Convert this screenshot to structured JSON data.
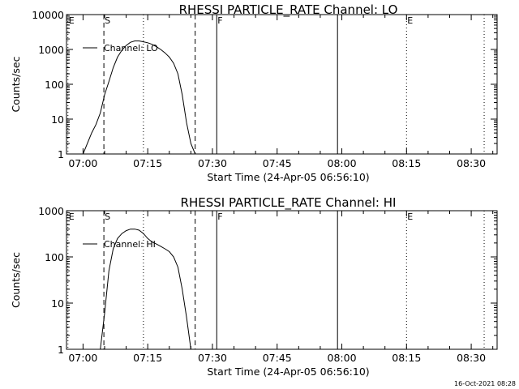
{
  "footer": {
    "timestamp": "16-Oct-2021 08:28"
  },
  "chart_data": [
    {
      "type": "line",
      "title": "RHESSI PARTICLE_RATE Channel: LO",
      "xlabel": "Start Time (24-Apr-05 06:56:10)",
      "ylabel": "Counts/sec",
      "yscale": "log",
      "xlim": [
        "06:56:10",
        "08:36:00"
      ],
      "ylim": [
        1,
        10000
      ],
      "xticks": [
        "07:00",
        "07:15",
        "07:30",
        "07:45",
        "08:00",
        "08:15",
        "08:30"
      ],
      "yticks": [
        "1",
        "10",
        "100",
        "1000",
        "10000"
      ],
      "legend": {
        "position": "top-left",
        "entries": [
          "Channel: LO"
        ]
      },
      "series": [
        {
          "name": "Channel: LO",
          "x": [
            "07:00:00",
            "07:01:00",
            "07:02:00",
            "07:03:00",
            "07:04:00",
            "07:05:00",
            "07:06:00",
            "07:07:00",
            "07:08:00",
            "07:09:00",
            "07:10:00",
            "07:11:00",
            "07:12:00",
            "07:13:00",
            "07:14:00",
            "07:15:00",
            "07:16:00",
            "07:17:00",
            "07:18:00",
            "07:19:00",
            "07:20:00",
            "07:21:00",
            "07:22:00",
            "07:23:00",
            "07:24:00",
            "07:25:00",
            "07:26:00"
          ],
          "y": [
            1,
            2,
            4,
            7,
            15,
            50,
            120,
            300,
            600,
            950,
            1300,
            1600,
            1750,
            1750,
            1650,
            1550,
            1400,
            1200,
            1000,
            800,
            600,
            400,
            200,
            50,
            8,
            2,
            1
          ]
        }
      ],
      "annotations": [
        {
          "label": "E",
          "time": "06:56:30",
          "style": "dotted"
        },
        {
          "label": "S",
          "time": "07:04:50",
          "style": "dashed"
        },
        {
          "label": "",
          "time": "07:14:00",
          "style": "dotted"
        },
        {
          "label": "",
          "time": "07:26:00",
          "style": "dashed"
        },
        {
          "label": "F",
          "time": "07:31:00",
          "style": "solid"
        },
        {
          "label": "",
          "time": "07:59:00",
          "style": "solid"
        },
        {
          "label": "E",
          "time": "08:15:00",
          "style": "dotted"
        },
        {
          "label": "",
          "time": "08:33:00",
          "style": "dotted"
        }
      ]
    },
    {
      "type": "line",
      "title": "RHESSI PARTICLE_RATE Channel: HI",
      "xlabel": "Start Time (24-Apr-05 06:56:10)",
      "ylabel": "Counts/sec",
      "yscale": "log",
      "xlim": [
        "06:56:10",
        "08:36:00"
      ],
      "ylim": [
        1,
        1000
      ],
      "xticks": [
        "07:00",
        "07:15",
        "07:30",
        "07:45",
        "08:00",
        "08:15",
        "08:30"
      ],
      "yticks": [
        "1",
        "10",
        "100",
        "1000"
      ],
      "legend": {
        "position": "top-left",
        "entries": [
          "Channel: HI"
        ]
      },
      "series": [
        {
          "name": "Channel: HI",
          "x": [
            "07:04:00",
            "07:05:00",
            "07:06:00",
            "07:07:00",
            "07:08:00",
            "07:09:00",
            "07:10:00",
            "07:11:00",
            "07:12:00",
            "07:13:00",
            "07:14:00",
            "07:15:00",
            "07:16:00",
            "07:17:00",
            "07:18:00",
            "07:19:00",
            "07:20:00",
            "07:21:00",
            "07:22:00",
            "07:23:00",
            "07:24:00",
            "07:25:00"
          ],
          "y": [
            1,
            6,
            50,
            150,
            250,
            320,
            370,
            400,
            400,
            380,
            320,
            250,
            210,
            190,
            170,
            150,
            130,
            100,
            60,
            20,
            5,
            1
          ]
        }
      ],
      "annotations": [
        {
          "label": "E",
          "time": "06:56:30",
          "style": "dotted"
        },
        {
          "label": "S",
          "time": "07:04:50",
          "style": "dashed"
        },
        {
          "label": "",
          "time": "07:14:00",
          "style": "dotted"
        },
        {
          "label": "",
          "time": "07:26:00",
          "style": "dashed"
        },
        {
          "label": "F",
          "time": "07:31:00",
          "style": "solid"
        },
        {
          "label": "",
          "time": "07:59:00",
          "style": "solid"
        },
        {
          "label": "E",
          "time": "08:15:00",
          "style": "dotted"
        },
        {
          "label": "",
          "time": "08:33:00",
          "style": "dotted"
        }
      ]
    }
  ]
}
